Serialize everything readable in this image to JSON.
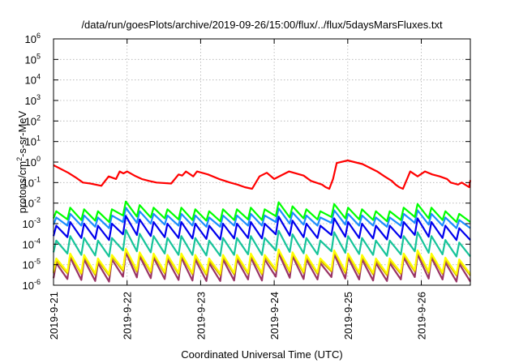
{
  "chart_data": {
    "type": "line",
    "title": "/data/run/goesPlots/archive/2019-09-26/15:00/flux/../flux/5daysMarsFluxes.txt",
    "xlabel": "Coordinated Universal Time (UTC)",
    "ylabel_parts": {
      "pre": "protons/cm",
      "sup": "2",
      "post": "-s-sr-MeV"
    },
    "xlim": [
      "2019-09-21T00:00",
      "2019-09-26T16:00"
    ],
    "y_scale": "log",
    "ylim": [
      1e-06,
      1000000.0
    ],
    "y_ticks": [
      {
        "value": 1e-06,
        "base": "10",
        "exp": "-6"
      },
      {
        "value": 1e-05,
        "base": "10",
        "exp": "-5"
      },
      {
        "value": 0.0001,
        "base": "10",
        "exp": "-4"
      },
      {
        "value": 0.001,
        "base": "10",
        "exp": "-3"
      },
      {
        "value": 0.01,
        "base": "10",
        "exp": "-2"
      },
      {
        "value": 0.1,
        "base": "10",
        "exp": "-1"
      },
      {
        "value": 1.0,
        "base": "10",
        "exp": "0"
      },
      {
        "value": 10.0,
        "base": "10",
        "exp": "1"
      },
      {
        "value": 100.0,
        "base": "10",
        "exp": "2"
      },
      {
        "value": 1000.0,
        "base": "10",
        "exp": "3"
      },
      {
        "value": 10000.0,
        "base": "10",
        "exp": "4"
      },
      {
        "value": 100000.0,
        "base": "10",
        "exp": "5"
      },
      {
        "value": 1000000.0,
        "base": "10",
        "exp": "6"
      }
    ],
    "x_ticks": [
      {
        "date": "2019-09-21T00:00",
        "label": "2019-9-21"
      },
      {
        "date": "2019-09-22T00:00",
        "label": "2019-9-22"
      },
      {
        "date": "2019-09-23T00:00",
        "label": "2019-9-23"
      },
      {
        "date": "2019-09-24T00:00",
        "label": "2019-9-24"
      },
      {
        "date": "2019-09-25T00:00",
        "label": "2019-9-25"
      },
      {
        "date": "2019-09-26T00:00",
        "label": "2019-9-26"
      }
    ],
    "grid": true,
    "series": [
      {
        "color": "#ff0000",
        "x": [
          "2019-09-21T00:00",
          "2019-09-21T04:48",
          "2019-09-21T07:12",
          "2019-09-21T09:36",
          "2019-09-21T12:00",
          "2019-09-21T15:36",
          "2019-09-21T18:00",
          "2019-09-21T20:24",
          "2019-09-21T21:36",
          "2019-09-21T22:48",
          "2019-09-22T00:00",
          "2019-09-22T02:24",
          "2019-09-22T04:48",
          "2019-09-22T07:12",
          "2019-09-22T09:36",
          "2019-09-22T14:24",
          "2019-09-22T16:48",
          "2019-09-22T18:00",
          "2019-09-22T19:12",
          "2019-09-22T21:36",
          "2019-09-22T22:48",
          "2019-09-23T02:24",
          "2019-09-23T06:00",
          "2019-09-23T09:36",
          "2019-09-23T12:00",
          "2019-09-23T14:24",
          "2019-09-23T16:48",
          "2019-09-23T19:12",
          "2019-09-23T21:36",
          "2019-09-24T00:00",
          "2019-09-24T04:48",
          "2019-09-24T09:36",
          "2019-09-24T12:00",
          "2019-09-24T15:36",
          "2019-09-24T16:48",
          "2019-09-24T18:00",
          "2019-09-24T19:12",
          "2019-09-24T20:24",
          "2019-09-25T00:00",
          "2019-09-25T04:48",
          "2019-09-25T09:36",
          "2019-09-25T12:00",
          "2019-09-25T14:24",
          "2019-09-25T15:36",
          "2019-09-25T16:48",
          "2019-09-25T18:00",
          "2019-09-25T20:24",
          "2019-09-25T22:48",
          "2019-09-26T01:12",
          "2019-09-26T03:36",
          "2019-09-26T06:00",
          "2019-09-26T08:24",
          "2019-09-26T09:36",
          "2019-09-26T12:00",
          "2019-09-26T13:12",
          "2019-09-26T15:36",
          "2019-09-26T16:00"
        ],
        "y": [
          0.7,
          0.3,
          0.18,
          0.1,
          0.09,
          0.07,
          0.2,
          0.15,
          0.35,
          0.28,
          0.35,
          0.22,
          0.15,
          0.12,
          0.1,
          0.09,
          0.25,
          0.22,
          0.35,
          0.2,
          0.35,
          0.25,
          0.15,
          0.1,
          0.08,
          0.06,
          0.05,
          0.2,
          0.3,
          0.15,
          0.35,
          0.22,
          0.12,
          0.08,
          0.06,
          0.05,
          0.15,
          0.9,
          1.2,
          0.8,
          0.35,
          0.2,
          0.12,
          0.08,
          0.06,
          0.05,
          0.35,
          0.2,
          0.35,
          0.25,
          0.2,
          0.15,
          0.1,
          0.08,
          0.1,
          0.06,
          0.13
        ]
      },
      {
        "color": "#00ff00",
        "x": [
          "2019-09-21T01:12",
          "2019-09-26T16:00"
        ],
        "y": [
          0.0035,
          0.0025
        ],
        "spikes": [
          0.004,
          0.006,
          0.005,
          0.004,
          0.005,
          0.012,
          0.008,
          0.006,
          0.005,
          0.006,
          0.005,
          0.004,
          0.005,
          0.005,
          0.006,
          0.005,
          0.011,
          0.007,
          0.005,
          0.004,
          0.009,
          0.006,
          0.005,
          0.004,
          0.004,
          0.006,
          0.009,
          0.006,
          0.004,
          0.003
        ],
        "troughs": [
          0.0018,
          0.0016,
          0.0015,
          0.0014,
          0.0012,
          0.0025,
          0.0022,
          0.002,
          0.0018,
          0.0016,
          0.0015,
          0.0014,
          0.0013,
          0.0015,
          0.0016,
          0.0015,
          0.0023,
          0.002,
          0.0018,
          0.0016,
          0.0021,
          0.0018,
          0.0016,
          0.0015,
          0.0013,
          0.0015,
          0.0021,
          0.0018,
          0.0015,
          0.0012
        ]
      },
      {
        "color": "#1a8cff",
        "troughs": [
          0.0009,
          0.0008,
          0.0008,
          0.0007,
          0.0006,
          0.0012,
          0.0011,
          0.001,
          0.0009,
          0.0008,
          0.0008,
          0.0007,
          0.0007,
          0.0008,
          0.0008,
          0.0008,
          0.0012,
          0.001,
          0.0009,
          0.0008,
          0.0011,
          0.0009,
          0.0008,
          0.0008,
          0.0007,
          0.0008,
          0.0011,
          0.0009,
          0.0008,
          0.0006
        ],
        "spikes": [
          0.002,
          0.003,
          0.0025,
          0.002,
          0.0025,
          0.006,
          0.004,
          0.003,
          0.0025,
          0.003,
          0.0025,
          0.002,
          0.0025,
          0.0025,
          0.003,
          0.0025,
          0.0055,
          0.0035,
          0.0025,
          0.002,
          0.0045,
          0.003,
          0.0025,
          0.002,
          0.002,
          0.003,
          0.0045,
          0.003,
          0.002,
          0.0015
        ]
      },
      {
        "color": "#0000ee",
        "troughs": [
          0.00025,
          0.00022,
          0.0002,
          0.00018,
          0.00016,
          0.0003,
          0.00028,
          0.00025,
          0.00022,
          0.0002,
          0.00019,
          0.00018,
          0.00017,
          0.00019,
          0.0002,
          0.00019,
          0.0003,
          0.00026,
          0.00022,
          0.0002,
          0.00028,
          0.00023,
          0.0002,
          0.00019,
          0.00017,
          0.0002,
          0.00028,
          0.00023,
          0.0002,
          0.00016
        ],
        "spikes": [
          0.0008,
          0.0012,
          0.001,
          0.0008,
          0.001,
          0.0024,
          0.0016,
          0.0012,
          0.001,
          0.0012,
          0.001,
          0.0008,
          0.001,
          0.001,
          0.0012,
          0.001,
          0.0022,
          0.0014,
          0.001,
          0.0008,
          0.0018,
          0.0012,
          0.001,
          0.0008,
          0.0008,
          0.0012,
          0.0018,
          0.0012,
          0.0008,
          0.0006
        ]
      },
      {
        "color": "#17c49a",
        "troughs": [
          4e-05,
          3.5e-05,
          3e-05,
          2.8e-05,
          2.5e-05,
          5e-05,
          4.5e-05,
          4e-05,
          3.5e-05,
          3e-05,
          3e-05,
          2.8e-05,
          2.7e-05,
          3e-05,
          3.2e-05,
          3e-05,
          5e-05,
          4.2e-05,
          3.6e-05,
          3.2e-05,
          4.5e-05,
          3.8e-05,
          3.3e-05,
          3e-05,
          2.7e-05,
          3.2e-05,
          4.5e-05,
          3.8e-05,
          3.2e-05,
          2.5e-05
        ],
        "spikes": [
          0.00015,
          0.00025,
          0.0002,
          0.00015,
          0.0002,
          0.0005,
          0.00032,
          0.00025,
          0.0002,
          0.00025,
          0.0002,
          0.00015,
          0.0002,
          0.0002,
          0.00025,
          0.0002,
          0.00045,
          0.0003,
          0.0002,
          0.00015,
          0.00038,
          0.00025,
          0.0002,
          0.00015,
          0.00015,
          0.00025,
          0.00038,
          0.00025,
          0.00016,
          0.00012
        ]
      },
      {
        "color": "#ffff00",
        "troughs": [
          5e-06,
          4.5e-06,
          4e-06,
          3.8e-06,
          3.5e-06,
          6e-06,
          5.5e-06,
          5e-06,
          4.5e-06,
          4e-06,
          4e-06,
          3.8e-06,
          3.7e-06,
          4e-06,
          4.2e-06,
          4e-06,
          6e-06,
          5.2e-06,
          4.6e-06,
          4.2e-06,
          5.5e-06,
          4.8e-06,
          4.3e-06,
          4e-06,
          3.7e-06,
          4.2e-06,
          5.5e-06,
          4.8e-06,
          4.2e-06,
          3.5e-06
        ],
        "spikes": [
          2e-05,
          3.5e-05,
          3e-05,
          2e-05,
          3e-05,
          6e-05,
          4e-05,
          3.5e-05,
          3e-05,
          3.5e-05,
          3e-05,
          2e-05,
          3e-05,
          3e-05,
          3.5e-05,
          3e-05,
          5.5e-05,
          4e-05,
          3e-05,
          2e-05,
          5e-05,
          3.5e-05,
          3e-05,
          2e-05,
          2e-05,
          3.5e-05,
          5e-05,
          3.5e-05,
          2.2e-05,
          1.8e-05
        ]
      },
      {
        "color": "#d4a300",
        "troughs": [
          4e-06,
          3.8e-06,
          3.5e-06,
          3.2e-06,
          3e-06,
          5e-06,
          4.6e-06,
          4.2e-06,
          3.8e-06,
          3.5e-06,
          3.4e-06,
          3.2e-06,
          3.1e-06,
          3.4e-06,
          3.6e-06,
          3.4e-06,
          5e-06,
          4.4e-06,
          3.9e-06,
          3.6e-06,
          4.7e-06,
          4e-06,
          3.6e-06,
          3.4e-06,
          3.1e-06,
          3.6e-06,
          4.7e-06,
          4e-06,
          3.6e-06,
          3e-06
        ],
        "spikes": [
          1.6e-05,
          3e-05,
          2.5e-05,
          1.6e-05,
          2.5e-05,
          5.5e-05,
          3.5e-05,
          3e-05,
          2.5e-05,
          3e-05,
          2.5e-05,
          1.6e-05,
          2.5e-05,
          2.5e-05,
          3e-05,
          2.5e-05,
          5e-05,
          3.5e-05,
          2.5e-05,
          1.6e-05,
          4.5e-05,
          3e-05,
          2.5e-05,
          1.6e-05,
          1.6e-05,
          3e-05,
          4.5e-05,
          3e-05,
          1.8e-05,
          1.5e-05
        ]
      },
      {
        "color": "#993366",
        "troughs": [
          2.2e-06,
          2e-06,
          1.8e-06,
          1.6e-06,
          1.5e-06,
          2.6e-06,
          2.4e-06,
          2.2e-06,
          2e-06,
          1.8e-06,
          1.7e-06,
          1.6e-06,
          1.6e-06,
          1.7e-06,
          1.9e-06,
          1.7e-06,
          2.6e-06,
          2.3e-06,
          2e-06,
          1.9e-06,
          2.5e-06,
          2.1e-06,
          1.9e-06,
          1.7e-06,
          1.6e-06,
          1.9e-06,
          2.5e-06,
          2.1e-06,
          1.9e-06,
          1.5e-06
        ],
        "spikes": [
          1.2e-05,
          2.2e-05,
          1.8e-05,
          1.2e-05,
          1.8e-05,
          4e-05,
          2.6e-05,
          2.2e-05,
          1.8e-05,
          2.2e-05,
          1.8e-05,
          1.2e-05,
          1.8e-05,
          1.8e-05,
          2.2e-05,
          1.8e-05,
          3.6e-05,
          2.6e-05,
          1.8e-05,
          1.2e-05,
          3.2e-05,
          2.2e-05,
          1.8e-05,
          1.2e-05,
          1.2e-05,
          2.2e-05,
          3.2e-05,
          2.2e-05,
          1.3e-05,
          1.1e-05
        ]
      }
    ]
  }
}
